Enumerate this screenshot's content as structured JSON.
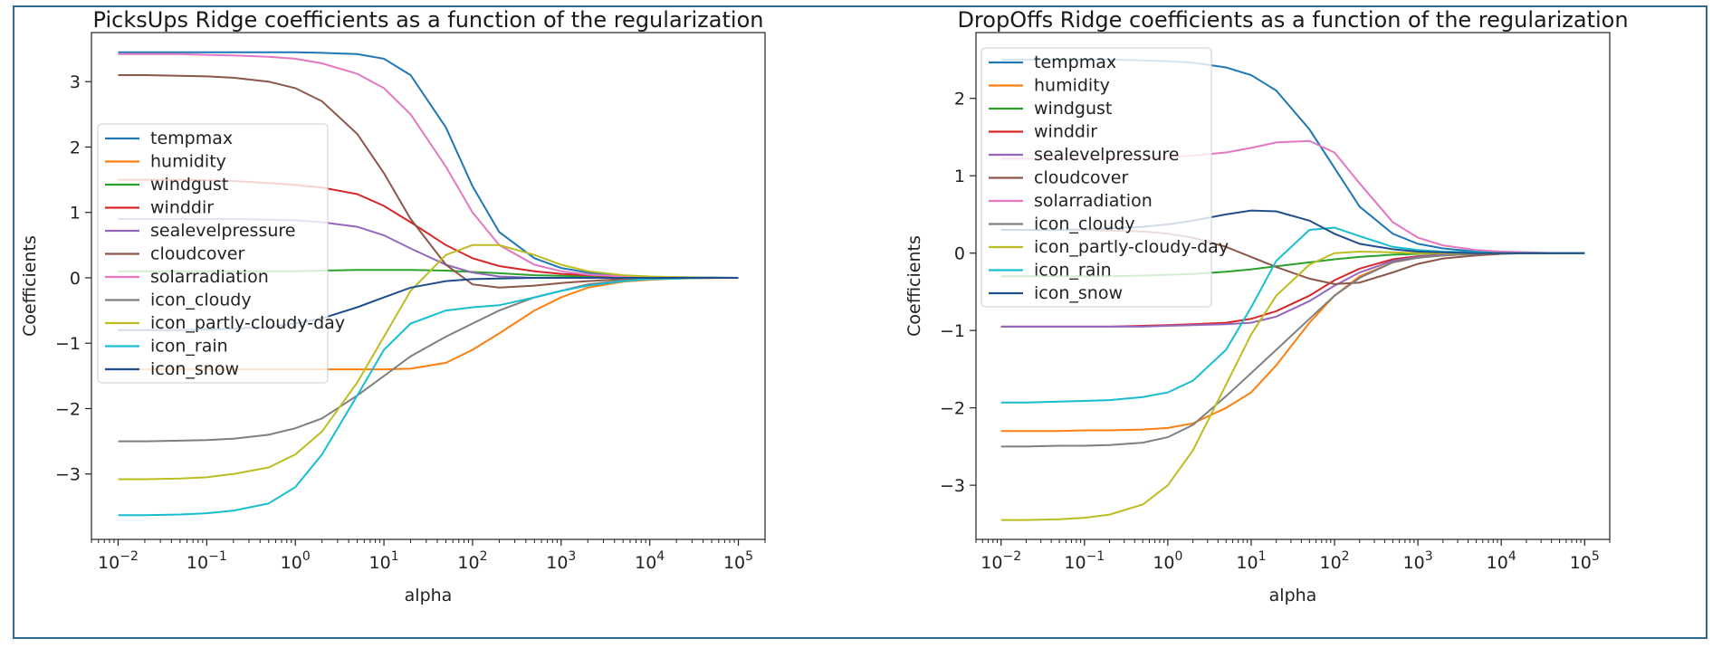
{
  "chart_data": [
    {
      "type": "line",
      "title": "PicksUps Ridge coefficients as a function of the regularization",
      "xlabel": "alpha",
      "ylabel": "Coefficients",
      "xscale": "log",
      "xlim": [
        0.005,
        200000
      ],
      "ylim": [
        -4.0,
        3.75
      ],
      "x_ticks": [
        0.01,
        0.1,
        1,
        10,
        100,
        1000,
        10000,
        100000
      ],
      "x_tick_labels": [
        {
          "base": "10",
          "exp": "−2"
        },
        {
          "base": "10",
          "exp": "−1"
        },
        {
          "base": "10",
          "exp": "0"
        },
        {
          "base": "10",
          "exp": "1"
        },
        {
          "base": "10",
          "exp": "2"
        },
        {
          "base": "10",
          "exp": "3"
        },
        {
          "base": "10",
          "exp": "4"
        },
        {
          "base": "10",
          "exp": "5"
        }
      ],
      "y_ticks": [
        -3,
        -2,
        -1,
        0,
        1,
        2,
        3
      ],
      "y_tick_labels": [
        "−3",
        "−2",
        "−1",
        "0",
        "1",
        "2",
        "3"
      ],
      "legend": "center-left",
      "x": [
        0.01,
        0.02,
        0.05,
        0.1,
        0.2,
        0.5,
        1,
        2,
        5,
        10,
        20,
        50,
        100,
        200,
        500,
        1000,
        2000,
        5000,
        10000,
        20000,
        50000,
        100000
      ],
      "series": [
        {
          "name": "tempmax",
          "color": "#1f77b4",
          "values": [
            3.45,
            3.45,
            3.45,
            3.45,
            3.45,
            3.45,
            3.45,
            3.44,
            3.42,
            3.35,
            3.1,
            2.3,
            1.4,
            0.7,
            0.3,
            0.15,
            0.08,
            0.03,
            0.015,
            0.01,
            0.005,
            0.0
          ]
        },
        {
          "name": "humidity",
          "color": "#ff7f0e",
          "values": [
            -1.4,
            -1.4,
            -1.4,
            -1.4,
            -1.4,
            -1.4,
            -1.4,
            -1.4,
            -1.4,
            -1.4,
            -1.39,
            -1.3,
            -1.1,
            -0.85,
            -0.5,
            -0.3,
            -0.15,
            -0.06,
            -0.03,
            -0.01,
            -0.005,
            0.0
          ]
        },
        {
          "name": "windgust",
          "color": "#2ca02c",
          "values": [
            0.1,
            0.1,
            0.1,
            0.1,
            0.1,
            0.1,
            0.1,
            0.11,
            0.12,
            0.12,
            0.12,
            0.11,
            0.09,
            0.07,
            0.04,
            0.03,
            0.02,
            0.01,
            0.005,
            0.0,
            0.0,
            0.0
          ]
        },
        {
          "name": "winddir",
          "color": "#d62728",
          "values": [
            1.5,
            1.5,
            1.5,
            1.49,
            1.48,
            1.45,
            1.42,
            1.38,
            1.28,
            1.1,
            0.85,
            0.5,
            0.3,
            0.18,
            0.1,
            0.06,
            0.04,
            0.02,
            0.01,
            0.005,
            0.0,
            0.0
          ]
        },
        {
          "name": "sealevelpressure",
          "color": "#9467bd",
          "values": [
            0.9,
            0.9,
            0.9,
            0.9,
            0.9,
            0.89,
            0.88,
            0.85,
            0.78,
            0.65,
            0.45,
            0.2,
            0.08,
            0.02,
            0.0,
            0.0,
            0.0,
            0.0,
            0.0,
            0.0,
            0.0,
            0.0
          ]
        },
        {
          "name": "cloudcover",
          "color": "#8c564b",
          "values": [
            3.1,
            3.1,
            3.09,
            3.08,
            3.06,
            3.0,
            2.9,
            2.7,
            2.2,
            1.6,
            0.9,
            0.2,
            -0.1,
            -0.15,
            -0.12,
            -0.08,
            -0.05,
            -0.02,
            -0.01,
            0.0,
            0.0,
            0.0
          ]
        },
        {
          "name": "solarradiation",
          "color": "#e377c2",
          "values": [
            3.42,
            3.42,
            3.42,
            3.41,
            3.4,
            3.38,
            3.35,
            3.28,
            3.12,
            2.9,
            2.5,
            1.7,
            1.0,
            0.5,
            0.2,
            0.1,
            0.05,
            0.02,
            0.01,
            0.005,
            0.0,
            0.0
          ]
        },
        {
          "name": "icon_cloudy",
          "color": "#7f7f7f",
          "values": [
            -2.5,
            -2.5,
            -2.49,
            -2.48,
            -2.46,
            -2.4,
            -2.3,
            -2.15,
            -1.8,
            -1.5,
            -1.2,
            -0.9,
            -0.7,
            -0.5,
            -0.3,
            -0.2,
            -0.1,
            -0.04,
            -0.02,
            -0.01,
            0.0,
            0.0
          ]
        },
        {
          "name": "icon_partly-cloudy-day",
          "color": "#bcbd22",
          "values": [
            -3.08,
            -3.08,
            -3.07,
            -3.05,
            -3.0,
            -2.9,
            -2.7,
            -2.35,
            -1.6,
            -0.9,
            -0.2,
            0.35,
            0.5,
            0.5,
            0.35,
            0.2,
            0.1,
            0.04,
            0.02,
            0.01,
            0.0,
            0.0
          ]
        },
        {
          "name": "icon_rain",
          "color": "#17becf",
          "values": [
            -3.63,
            -3.63,
            -3.62,
            -3.6,
            -3.56,
            -3.45,
            -3.2,
            -2.7,
            -1.8,
            -1.1,
            -0.7,
            -0.5,
            -0.45,
            -0.42,
            -0.3,
            -0.2,
            -0.12,
            -0.05,
            -0.02,
            -0.01,
            0.0,
            0.0
          ]
        },
        {
          "name": "icon_snow",
          "color": "#1f4e8c",
          "values": [
            -0.8,
            -0.8,
            -0.8,
            -0.79,
            -0.78,
            -0.75,
            -0.7,
            -0.62,
            -0.45,
            -0.3,
            -0.15,
            -0.05,
            -0.02,
            -0.01,
            0.0,
            0.0,
            0.0,
            0.0,
            0.0,
            0.0,
            0.0,
            0.0
          ]
        }
      ]
    },
    {
      "type": "line",
      "title": "DropOffs Ridge coefficients as a function of the regularization",
      "xlabel": "alpha",
      "ylabel": "Coefficients",
      "xscale": "log",
      "xlim": [
        0.005,
        200000
      ],
      "ylim": [
        -3.7,
        2.85
      ],
      "x_ticks": [
        0.01,
        0.1,
        1,
        10,
        100,
        1000,
        10000,
        100000
      ],
      "x_tick_labels": [
        {
          "base": "10",
          "exp": "−2"
        },
        {
          "base": "10",
          "exp": "−1"
        },
        {
          "base": "10",
          "exp": "0"
        },
        {
          "base": "10",
          "exp": "1"
        },
        {
          "base": "10",
          "exp": "2"
        },
        {
          "base": "10",
          "exp": "3"
        },
        {
          "base": "10",
          "exp": "4"
        },
        {
          "base": "10",
          "exp": "5"
        }
      ],
      "y_ticks": [
        -3,
        -2,
        -1,
        0,
        1,
        2
      ],
      "y_tick_labels": [
        "−3",
        "−2",
        "−1",
        "0",
        "1",
        "2"
      ],
      "legend": "upper-left",
      "x": [
        0.01,
        0.02,
        0.05,
        0.1,
        0.2,
        0.5,
        1,
        2,
        5,
        10,
        20,
        50,
        100,
        200,
        500,
        1000,
        2000,
        5000,
        10000,
        20000,
        50000,
        100000
      ],
      "series": [
        {
          "name": "tempmax",
          "color": "#1f77b4",
          "values": [
            2.5,
            2.5,
            2.5,
            2.5,
            2.5,
            2.49,
            2.48,
            2.46,
            2.4,
            2.3,
            2.1,
            1.6,
            1.1,
            0.6,
            0.25,
            0.12,
            0.06,
            0.02,
            0.01,
            0.005,
            0.0,
            0.0
          ]
        },
        {
          "name": "humidity",
          "color": "#ff7f0e",
          "values": [
            -2.3,
            -2.3,
            -2.3,
            -2.29,
            -2.29,
            -2.28,
            -2.26,
            -2.2,
            -2.0,
            -1.8,
            -1.45,
            -0.9,
            -0.55,
            -0.3,
            -0.12,
            -0.06,
            -0.03,
            -0.01,
            0.0,
            0.0,
            0.0,
            0.0
          ]
        },
        {
          "name": "windgust",
          "color": "#2ca02c",
          "values": [
            -0.3,
            -0.3,
            -0.3,
            -0.3,
            -0.3,
            -0.29,
            -0.28,
            -0.27,
            -0.24,
            -0.21,
            -0.17,
            -0.12,
            -0.08,
            -0.05,
            -0.02,
            -0.01,
            0.0,
            0.0,
            0.0,
            0.0,
            0.0,
            0.0
          ]
        },
        {
          "name": "winddir",
          "color": "#d62728",
          "values": [
            -0.95,
            -0.95,
            -0.95,
            -0.95,
            -0.95,
            -0.94,
            -0.93,
            -0.92,
            -0.9,
            -0.85,
            -0.75,
            -0.55,
            -0.35,
            -0.2,
            -0.08,
            -0.04,
            -0.02,
            -0.01,
            0.0,
            0.0,
            0.0,
            0.0
          ]
        },
        {
          "name": "sealevelpressure",
          "color": "#9467bd",
          "values": [
            -0.95,
            -0.95,
            -0.95,
            -0.95,
            -0.95,
            -0.95,
            -0.94,
            -0.93,
            -0.92,
            -0.9,
            -0.82,
            -0.62,
            -0.42,
            -0.25,
            -0.1,
            -0.05,
            -0.02,
            -0.01,
            0.0,
            0.0,
            0.0,
            0.0
          ]
        },
        {
          "name": "cloudcover",
          "color": "#8c564b",
          "values": [
            0.3,
            0.3,
            0.3,
            0.3,
            0.29,
            0.28,
            0.25,
            0.2,
            0.08,
            -0.05,
            -0.18,
            -0.33,
            -0.4,
            -0.38,
            -0.25,
            -0.14,
            -0.07,
            -0.03,
            -0.01,
            0.0,
            0.0,
            0.0
          ]
        },
        {
          "name": "solarradiation",
          "color": "#e377c2",
          "values": [
            1.22,
            1.22,
            1.22,
            1.22,
            1.22,
            1.23,
            1.24,
            1.26,
            1.3,
            1.36,
            1.43,
            1.45,
            1.3,
            0.9,
            0.4,
            0.2,
            0.1,
            0.04,
            0.02,
            0.01,
            0.0,
            0.0
          ]
        },
        {
          "name": "icon_cloudy",
          "color": "#7f7f7f",
          "values": [
            -2.5,
            -2.5,
            -2.49,
            -2.49,
            -2.48,
            -2.45,
            -2.38,
            -2.22,
            -1.85,
            -1.55,
            -1.25,
            -0.85,
            -0.55,
            -0.32,
            -0.12,
            -0.06,
            -0.03,
            -0.01,
            0.0,
            0.0,
            0.0,
            0.0
          ]
        },
        {
          "name": "icon_partly-cloudy-day",
          "color": "#bcbd22",
          "values": [
            -3.45,
            -3.45,
            -3.44,
            -3.42,
            -3.38,
            -3.25,
            -3.0,
            -2.55,
            -1.7,
            -1.05,
            -0.55,
            -0.15,
            0.0,
            0.02,
            0.01,
            0.0,
            0.0,
            0.0,
            0.0,
            0.0,
            0.0,
            0.0
          ]
        },
        {
          "name": "icon_rain",
          "color": "#17becf",
          "values": [
            -1.93,
            -1.93,
            -1.92,
            -1.91,
            -1.9,
            -1.86,
            -1.8,
            -1.65,
            -1.25,
            -0.7,
            -0.1,
            0.3,
            0.33,
            0.22,
            0.08,
            0.04,
            0.02,
            0.01,
            0.0,
            0.0,
            0.0,
            0.0
          ]
        },
        {
          "name": "icon_snow",
          "color": "#1f4e8c",
          "values": [
            0.3,
            0.3,
            0.3,
            0.31,
            0.32,
            0.34,
            0.37,
            0.42,
            0.5,
            0.55,
            0.54,
            0.42,
            0.25,
            0.12,
            0.05,
            0.02,
            0.01,
            0.0,
            0.0,
            0.0,
            0.0,
            0.0
          ]
        }
      ]
    }
  ]
}
